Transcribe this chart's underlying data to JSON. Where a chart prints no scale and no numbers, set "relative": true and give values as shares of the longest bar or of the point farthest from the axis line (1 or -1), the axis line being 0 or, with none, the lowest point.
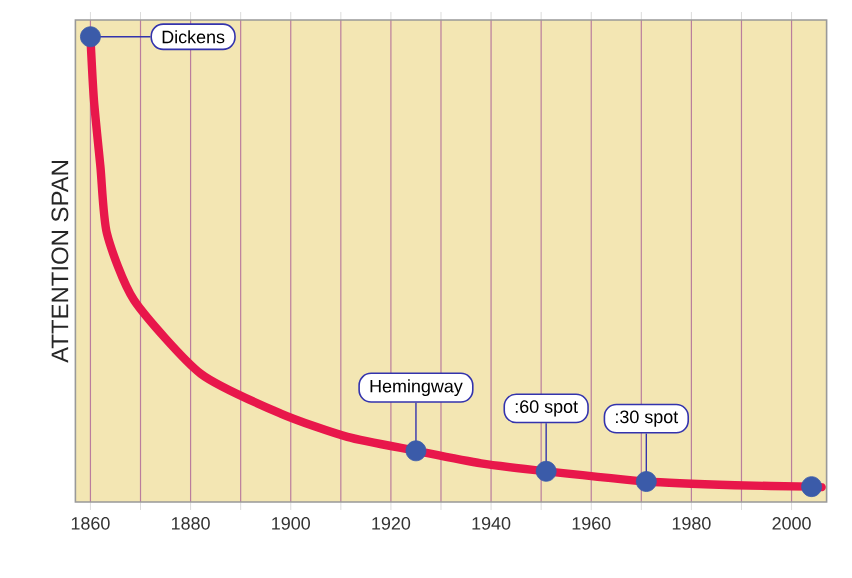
{
  "chart_data": {
    "type": "line",
    "ylabel": "ATTENTION SPAN",
    "relative": true,
    "xlim": [
      1857,
      2007
    ],
    "xticks": [
      1860,
      {
        "value": 1870,
        "label": null
      },
      1880,
      {
        "value": 1890,
        "label": null
      },
      1900,
      {
        "value": 1910,
        "label": null
      },
      1920,
      {
        "value": 1930,
        "label": null
      },
      1940,
      {
        "value": 1950,
        "label": null
      },
      1960,
      {
        "value": 1970,
        "label": null
      },
      1980,
      {
        "value": 1990,
        "label": null
      },
      2000
    ],
    "grid": "x",
    "series": [
      {
        "color": "#e8174b",
        "marker": "none",
        "x": [
          1860,
          1860.7,
          1862,
          1863.3,
          1868.7,
          1882,
          1898,
          1911.3,
          1925,
          1938,
          1951,
          1971,
          1988.7,
          2004,
          2006
        ],
        "values": [
          1,
          0.864,
          0.72,
          0.577,
          0.434,
          0.276,
          0.19,
          0.14,
          0.11,
          0.083,
          0.066,
          0.044,
          0.036,
          0.033,
          0.032
        ]
      },
      {
        "type": "scatter",
        "color": "#3b5ba9",
        "marker": "circle",
        "x": [
          1860,
          1925,
          1951,
          1971,
          2004
        ],
        "values": [
          1,
          0.11,
          0.066,
          0.044,
          0.033
        ]
      }
    ],
    "annotations": [
      {
        "text": "Dickens",
        "x": 1860,
        "y": 1
      },
      {
        "text": "Hemingway",
        "x": 1925,
        "y": 0.11
      },
      {
        "text": ":60 spot",
        "x": 1951,
        "y": 0.066
      },
      {
        "text": ":30 spot",
        "x": 1971,
        "y": 0.044
      }
    ]
  }
}
